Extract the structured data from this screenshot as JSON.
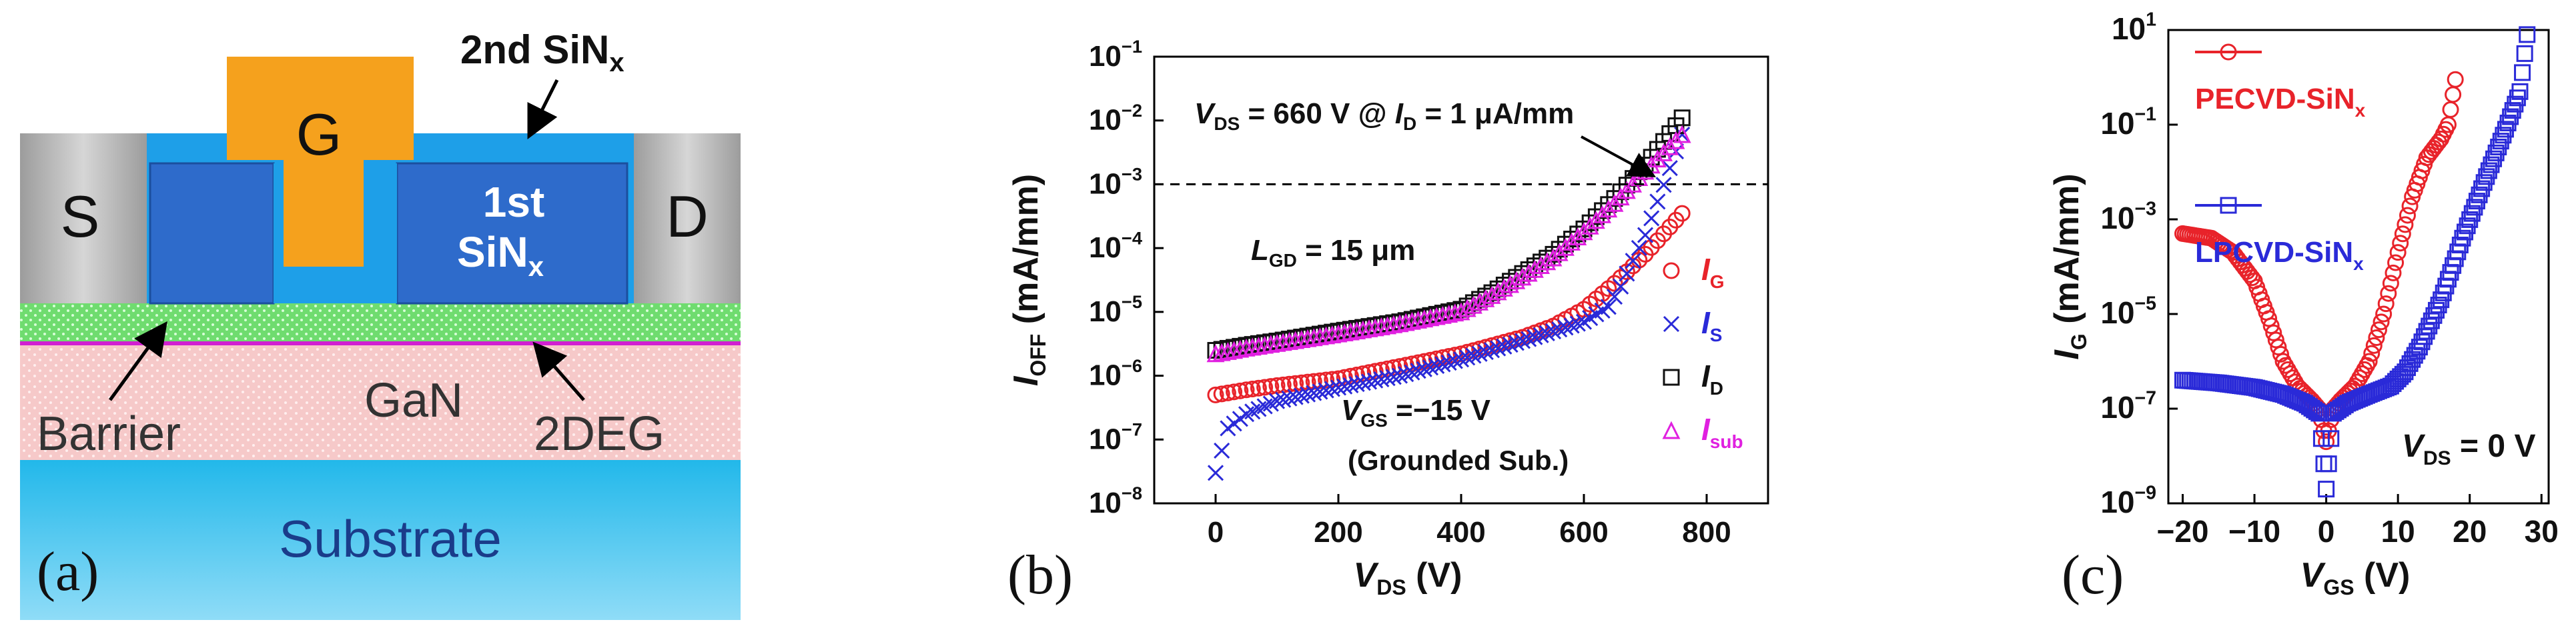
{
  "panel_a": {
    "label": "(a)",
    "gate": "G",
    "source": "S",
    "drain": "D",
    "first_sin": {
      "line1": "1st",
      "line2": "SiN",
      "sub": "x"
    },
    "second_sin": {
      "main": "2nd SiN",
      "sub": "x"
    },
    "barrier": "Barrier",
    "gan": "GaN",
    "twodeg": "2DEG",
    "substrate": "Substrate",
    "colors": {
      "gate": "#f5a11d",
      "sin1": "#2e6bcb",
      "sin2": "#1e9fe8",
      "contact": "#b5b5b5",
      "barrier": "#6fdc6f",
      "gan": "#f6c9c9",
      "substrate": "#33c3ee",
      "twodeg": "#d11fd1"
    }
  },
  "chart_data": [
    {
      "id": "b",
      "type": "scatter",
      "label": "(b)",
      "xlabel": "V_DS (V)",
      "ylabel": "I_OFF (mA/mm)",
      "xlim": [
        -100,
        900
      ],
      "yscale": "log",
      "ylim_exp": [
        -8,
        -1
      ],
      "xticks": [
        "0",
        "200",
        "400",
        "600",
        "800"
      ],
      "xtick_values": [
        0,
        200,
        400,
        600,
        800
      ],
      "ytick_exps": [
        -8,
        -7,
        -6,
        -5,
        -4,
        -3,
        -2,
        -1
      ],
      "threshold_exp": -3,
      "annotations": {
        "vds": "V",
        "vds_sub": "DS",
        "vds_rest": " = 660 V @ ",
        "id": "I",
        "id_sub": "D",
        "id_rest": " = 1 μA/mm",
        "lgd": "L",
        "lgd_sub": "GD",
        "lgd_rest": " = 15 μm",
        "vgs": "V",
        "vgs_sub": "GS",
        "vgs_rest": " =−15 V",
        "grounded": "(Grounded Sub.)"
      },
      "series": [
        {
          "name": "I",
          "sub": "G",
          "marker": "circle",
          "color": "#e8232a",
          "x": [
            0,
            50,
            100,
            200,
            300,
            400,
            500,
            550,
            600,
            650,
            700,
            760
          ],
          "y": [
            5e-07,
            6e-07,
            7e-07,
            9e-07,
            1.4e-06,
            2.2e-06,
            4e-06,
            6e-06,
            1.1e-05,
            2.8e-05,
            8e-05,
            0.00035
          ]
        },
        {
          "name": "I",
          "sub": "S",
          "marker": "x",
          "color": "#2a2ad8",
          "x": [
            0,
            20,
            50,
            100,
            200,
            300,
            400,
            500,
            600,
            640,
            660,
            700,
            760
          ],
          "y": [
            3e-08,
            1.5e-07,
            2.5e-07,
            4e-07,
            6.5e-07,
            1e-06,
            1.8e-06,
            3.5e-06,
            7e-06,
            1.2e-05,
            2.5e-05,
            0.00016,
            0.006
          ]
        },
        {
          "name": "I",
          "sub": "D",
          "marker": "square",
          "color": "#111111",
          "x": [
            0,
            50,
            100,
            200,
            300,
            400,
            450,
            500,
            550,
            600,
            650,
            700,
            760
          ],
          "y": [
            2.5e-06,
            3e-06,
            3.5e-06,
            5e-06,
            7e-06,
            1.1e-05,
            2e-05,
            4e-05,
            8e-05,
            0.0002,
            0.0006,
            0.002,
            0.011
          ]
        },
        {
          "name": "I",
          "sub": "sub",
          "marker": "triangle",
          "color": "#e020e0",
          "x": [
            0,
            50,
            100,
            200,
            300,
            400,
            450,
            500,
            550,
            600,
            650,
            700,
            760
          ],
          "y": [
            2.2e-06,
            2.7e-06,
            3.2e-06,
            4.5e-06,
            6.5e-06,
            1e-05,
            1.8e-05,
            3.5e-05,
            7e-05,
            0.00018,
            0.0005,
            0.0016,
            0.006
          ]
        }
      ]
    },
    {
      "id": "c",
      "type": "scatter",
      "label": "(c)",
      "xlabel": "V_GS (V)",
      "ylabel": "I_G (mA/mm)",
      "xlim": [
        -22,
        31
      ],
      "yscale": "log",
      "ylim_exp": [
        -9,
        1
      ],
      "xticks": [
        "−20",
        "−10",
        "0",
        "10",
        "20",
        "30"
      ],
      "xtick_values": [
        -20,
        -10,
        0,
        10,
        20,
        30
      ],
      "ytick_exps": [
        -9,
        -7,
        -5,
        -3,
        -1,
        1
      ],
      "annotations": {
        "vds": "V",
        "vds_sub": "DS",
        "vds_rest": " = 0 V"
      },
      "series": [
        {
          "name": "PECVD-SiN",
          "sub": "x",
          "marker": "circle",
          "color": "#e8232a",
          "x": [
            -20,
            -16,
            -13,
            -10,
            -8,
            -6,
            -4,
            -2,
            -1,
            0,
            1,
            2,
            4,
            6,
            8,
            10,
            12,
            14,
            16,
            17,
            18
          ],
          "y": [
            0.0005,
            0.0004,
            0.0002,
            5e-05,
            8e-06,
            1e-06,
            3e-07,
            1.5e-07,
            1e-07,
            2e-08,
            1e-07,
            1.5e-07,
            3e-07,
            1e-06,
            1e-05,
            0.0002,
            0.003,
            0.02,
            0.05,
            0.1,
            0.9
          ]
        },
        {
          "name": "LPCVD-SiN",
          "sub": "x",
          "marker": "square",
          "color": "#2a2ad8",
          "x": [
            -20,
            -15,
            -10,
            -6,
            -3,
            -1,
            0,
            1,
            3,
            6,
            9,
            11,
            13,
            16,
            19,
            22,
            25,
            27,
            28
          ],
          "y": [
            4e-07,
            3.5e-07,
            2.8e-07,
            2e-07,
            1.3e-07,
            8e-08,
            2e-09,
            8e-08,
            1.3e-07,
            2e-07,
            3e-07,
            6e-07,
            2e-06,
            2e-05,
            0.0004,
            0.006,
            0.08,
            0.5,
            8
          ]
        }
      ],
      "legend": [
        {
          "text": "PECVD-SiN",
          "sub": "x",
          "color": "#e8232a"
        },
        {
          "text": "LPCVD-SiN",
          "sub": "x",
          "color": "#2a2ad8"
        }
      ]
    }
  ]
}
